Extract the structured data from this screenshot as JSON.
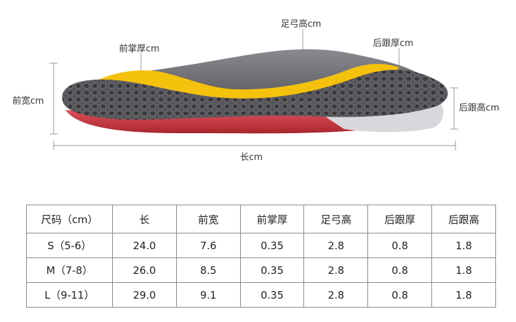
{
  "dimension_labels": {
    "arch_height": "足弓高cm",
    "forefoot_thickness": "前掌厚cm",
    "heel_thickness": "后跟厚cm",
    "forefoot_width": "前宽cm",
    "heel_height": "后跟高cm",
    "length": "长cm"
  },
  "colors": {
    "top_surface": "#5a5a5e",
    "hex_cells": "#3d3d40",
    "yellow_layer": "#f4c20d",
    "red_layer": "#c8323a",
    "gray_upper": "#6e6e72",
    "dimension_lines": "#9a9a9a"
  },
  "size_table": {
    "headers": [
      "尺码（cm）",
      "长",
      "前宽",
      "前掌厚",
      "足弓高",
      "后跟厚",
      "后跟高"
    ],
    "rows": [
      [
        "S（5-6）",
        "24.0",
        "7.6",
        "0.35",
        "2.8",
        "0.8",
        "1.8"
      ],
      [
        "M（7-8）",
        "26.0",
        "8.5",
        "0.35",
        "2.8",
        "0.8",
        "1.8"
      ],
      [
        "L（9-11）",
        "29.0",
        "9.1",
        "0.35",
        "2.8",
        "0.8",
        "1.8"
      ]
    ]
  }
}
